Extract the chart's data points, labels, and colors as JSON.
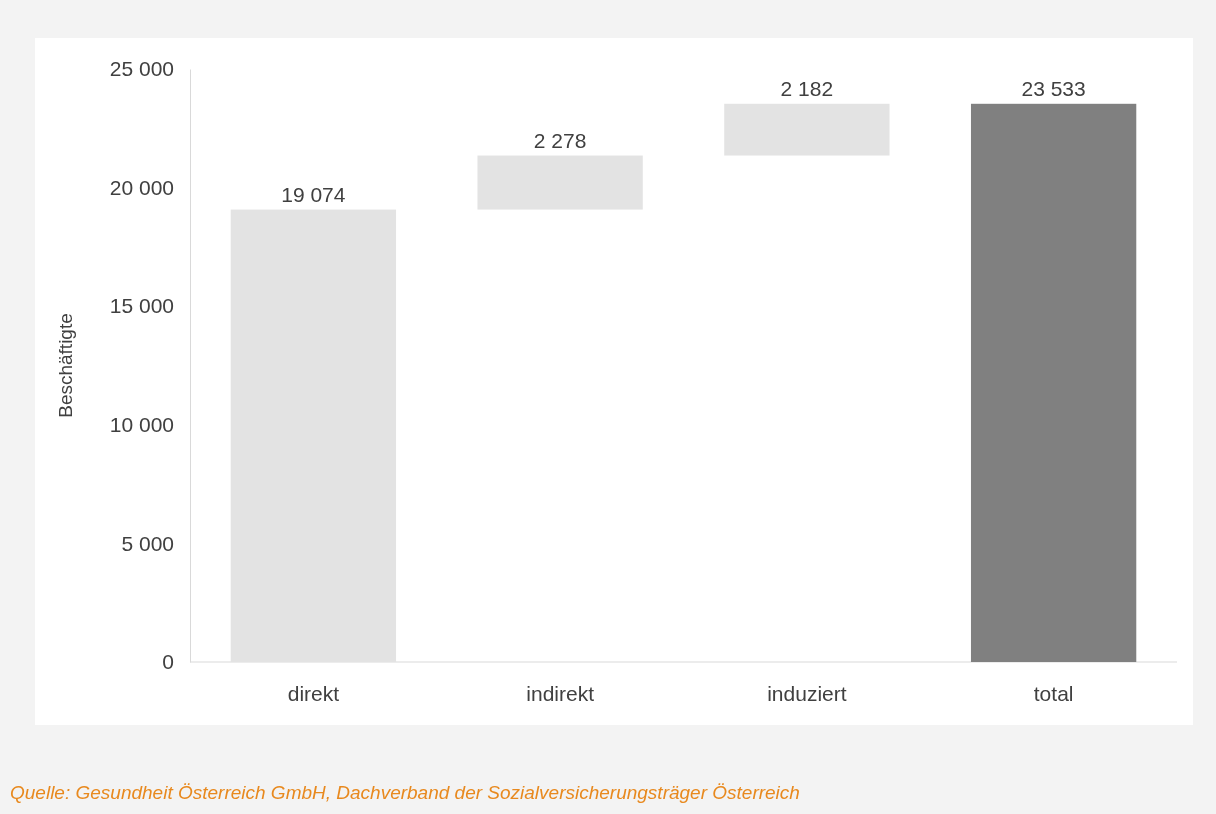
{
  "chart_data": {
    "type": "bar",
    "ylabel": "Beschäftigte",
    "categories": [
      "direkt",
      "indirekt",
      "induziert",
      "total"
    ],
    "values": [
      19074,
      2278,
      2182,
      23533
    ],
    "base": [
      0,
      19074,
      21352,
      0
    ],
    "colors": [
      "#e3e3e3",
      "#e3e3e3",
      "#e3e3e3",
      "#808080"
    ],
    "value_labels": [
      "19 074",
      "2 278",
      "2 182",
      "23 533"
    ],
    "ylim": [
      0,
      25000
    ],
    "yticks": [
      {
        "value": 0,
        "label": "0"
      },
      {
        "value": 5000,
        "label": "5 000"
      },
      {
        "value": 10000,
        "label": "10 000"
      },
      {
        "value": 15000,
        "label": "15 000"
      },
      {
        "value": 20000,
        "label": "20 000"
      },
      {
        "value": 25000,
        "label": "25 000"
      }
    ],
    "grid": false,
    "annotations": [
      "Quelle: Gesundheit Österreich GmbH, Dachverband der Sozialversicherungsträger Österreich"
    ]
  }
}
